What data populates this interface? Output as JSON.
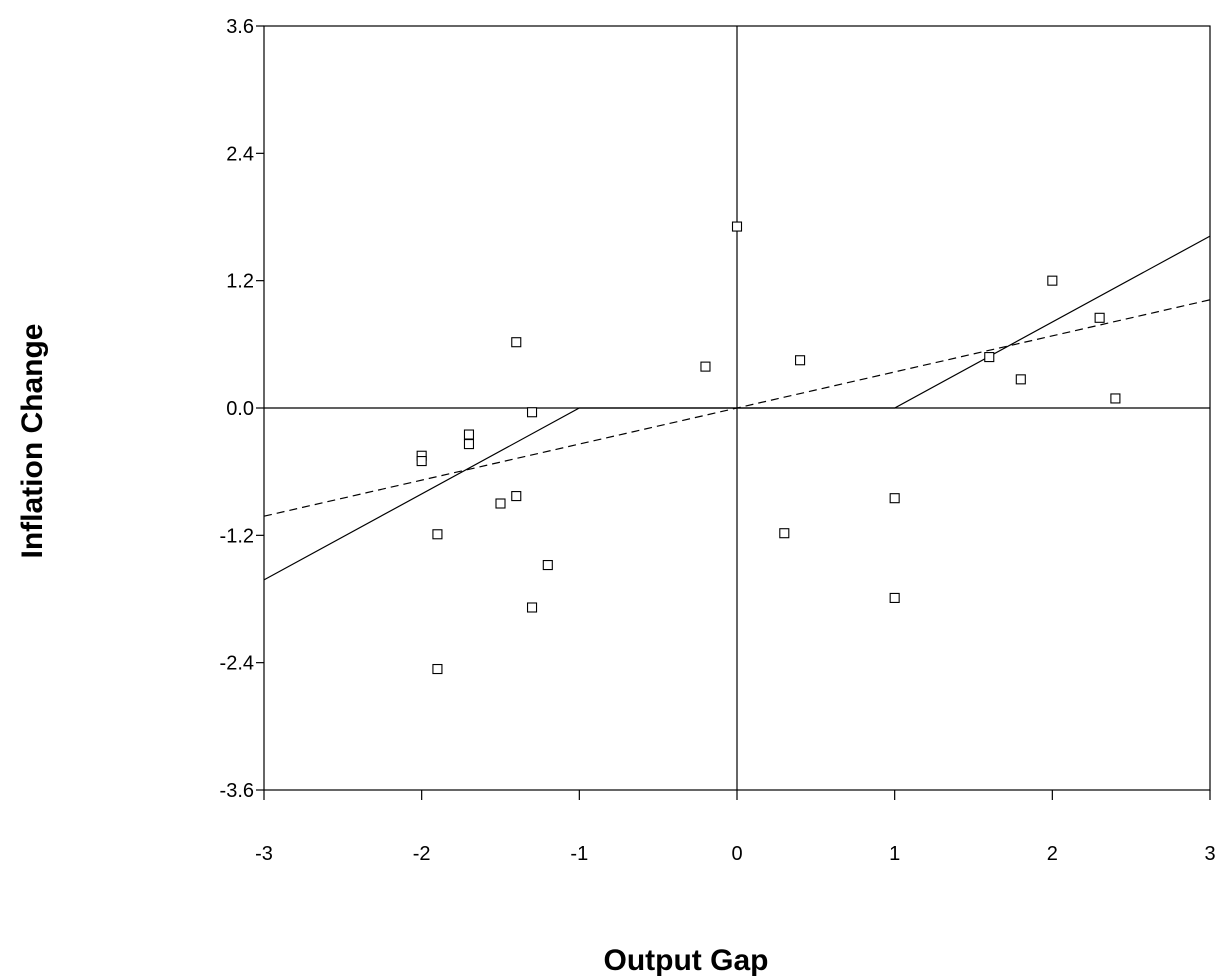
{
  "chart_data": {
    "type": "scatter",
    "title": "",
    "xlabel": "Output Gap",
    "ylabel": "Inflation Change",
    "xlim": [
      -3,
      3
    ],
    "ylim": [
      -3.6,
      3.6
    ],
    "x_ticks": [
      "-3",
      "-2",
      "-1",
      "0",
      "1",
      "2",
      "3"
    ],
    "y_ticks": [
      "3.6",
      "2.4",
      "1.2",
      "0.0",
      "-1.2",
      "-2.4",
      "-3.6"
    ],
    "grid": false,
    "reference_lines": {
      "x": 0,
      "y": 0
    },
    "points": [
      {
        "x": -2.0,
        "y": -0.45
      },
      {
        "x": -2.0,
        "y": -0.5
      },
      {
        "x": -1.9,
        "y": -1.19
      },
      {
        "x": -1.9,
        "y": -2.46
      },
      {
        "x": -1.7,
        "y": -0.25
      },
      {
        "x": -1.7,
        "y": -0.34
      },
      {
        "x": -1.5,
        "y": -0.9
      },
      {
        "x": -1.4,
        "y": 0.62
      },
      {
        "x": -1.4,
        "y": -0.83
      },
      {
        "x": -1.3,
        "y": -0.04
      },
      {
        "x": -1.3,
        "y": -1.88
      },
      {
        "x": -1.2,
        "y": -1.48
      },
      {
        "x": -0.2,
        "y": 0.39
      },
      {
        "x": 0.0,
        "y": 1.71
      },
      {
        "x": 0.3,
        "y": -1.18
      },
      {
        "x": 0.4,
        "y": 0.45
      },
      {
        "x": 1.0,
        "y": -0.85
      },
      {
        "x": 1.0,
        "y": -1.79
      },
      {
        "x": 1.6,
        "y": 0.48
      },
      {
        "x": 1.8,
        "y": 0.27
      },
      {
        "x": 2.0,
        "y": 1.2
      },
      {
        "x": 2.3,
        "y": 0.85
      },
      {
        "x": 2.4,
        "y": 0.09
      }
    ],
    "lines": [
      {
        "style": "solid",
        "points": [
          [
            -3,
            -1.62
          ],
          [
            -1,
            0
          ],
          [
            1,
            0
          ],
          [
            3,
            1.62
          ]
        ]
      },
      {
        "style": "dashed",
        "points": [
          [
            -3,
            -1.02
          ],
          [
            3,
            1.02
          ]
        ]
      }
    ]
  }
}
